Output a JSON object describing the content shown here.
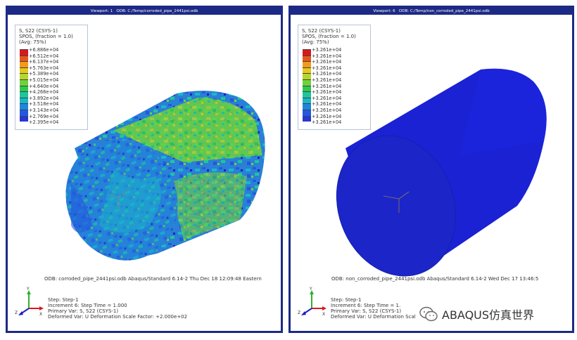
{
  "viewports": [
    {
      "title": "Viewport: 1   ODB: C:/Temp/corroded_pipe_2441psi.odb",
      "legend": {
        "variable": "S, S22 (CSYS-1)",
        "spos": "SPOS, (fraction = 1.0)",
        "avg": "(Avg: 75%)",
        "values": [
          "+6.886e+04",
          "+6.512e+04",
          "+6.137e+04",
          "+5.763e+04",
          "+5.389e+04",
          "+5.015e+04",
          "+4.640e+04",
          "+4.266e+04",
          "+3.892e+04",
          "+3.518e+04",
          "+3.143e+04",
          "+2.769e+04",
          "+2.395e+04"
        ]
      },
      "odb_line": "ODB: corroded_pipe_2441psi.odb    Abaqus/Standard 6.14-2    Thu Dec 18 12:09:48 Eastern",
      "step": "Step: Step-1",
      "increment": "Increment      6: Step Time =       1.000",
      "primary_var": "Primary Var: S, S22 (CSYS-1)",
      "deformed_var": "Deformed Var: U   Deformation Scale Factor: +2.000e+02"
    },
    {
      "title": "Viewport: 6   ODB: C:/Temp/non_corroded_pipe_2441psi.odb",
      "legend": {
        "variable": "S, S22 (CSYS-1)",
        "spos": "SPOS, (fraction = 1.0)",
        "avg": "(Avg: 75%)",
        "values": [
          "+3.261e+04",
          "+3.261e+04",
          "+3.261e+04",
          "+3.261e+04",
          "+3.261e+04",
          "+3.261e+04",
          "+3.261e+04",
          "+3.261e+04",
          "+3.261e+04",
          "+3.261e+04",
          "+3.261e+04",
          "+3.261e+04",
          "+3.261e+04"
        ]
      },
      "odb_line": "ODB: non_corroded_pipe_2441psi.odb    Abaqus/Standard 6.14-2    Wed Dec 17 13:46:5",
      "step": "Step: Step-1",
      "increment": "Increment      6: Step Time =       1.",
      "primary_var": "Primary Var: S, S22 (CSYS-1)",
      "deformed_var": "Deformed Var: U   Deformation Scal"
    }
  ],
  "colors": {
    "contour": [
      "#d7191c",
      "#e8561c",
      "#f39a1b",
      "#e5c91b",
      "#b5d62b",
      "#6cd43a",
      "#2fc94d",
      "#1ec79b",
      "#1ab7c8",
      "#1f86dc",
      "#2358e0",
      "#2a35d8",
      "#1f1fc4"
    ],
    "frame": "#1c2a86",
    "uniform_blue": "#1a22d4"
  },
  "triad_labels": [
    "X",
    "Y",
    "Z"
  ],
  "watermark": "ABAQUS仿真世界",
  "icons": [
    "triad-icon",
    "wechat-icon"
  ]
}
